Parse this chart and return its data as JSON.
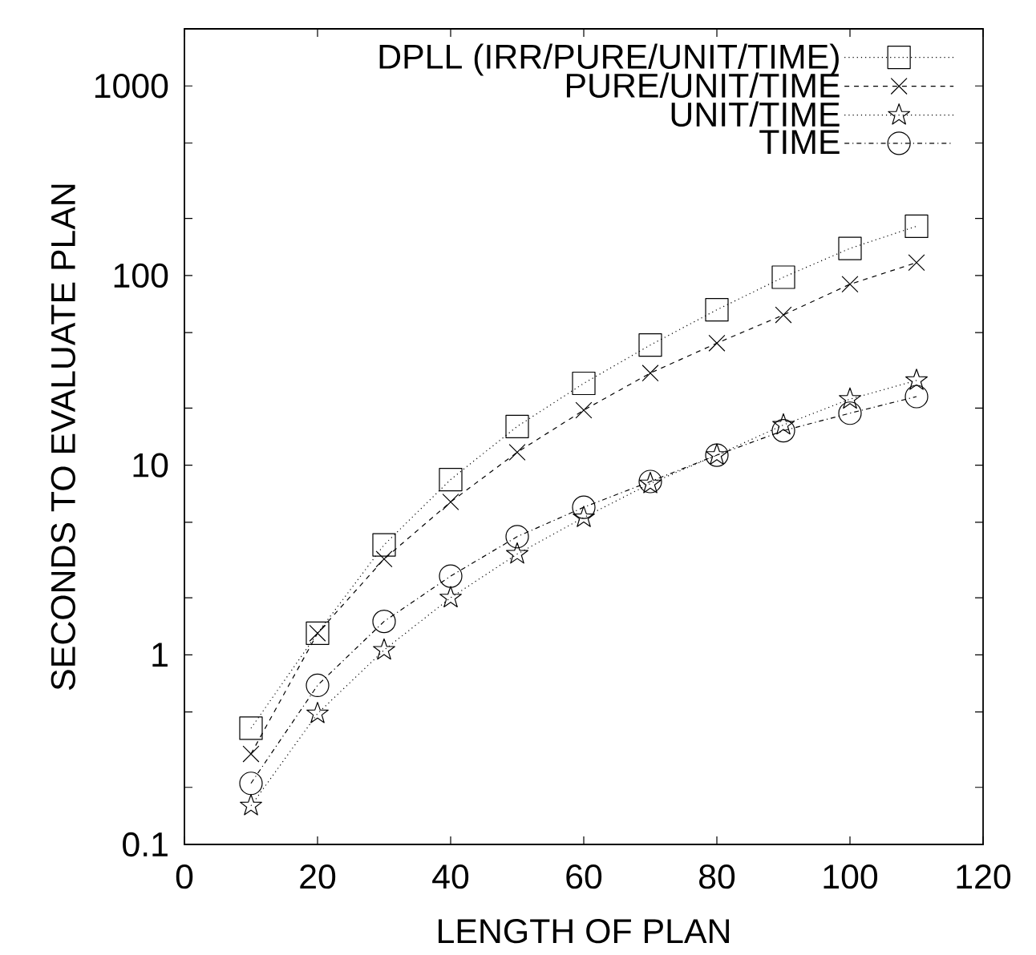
{
  "chart_data": {
    "type": "line",
    "xlabel": "LENGTH OF PLAN",
    "ylabel": "SECONDS TO EVALUATE PLAN",
    "x": [
      10,
      20,
      30,
      40,
      50,
      60,
      70,
      80,
      90,
      100,
      110
    ],
    "series": [
      {
        "name": "DPLL (IRR/PURE/UNIT/TIME)",
        "color": "#000000",
        "marker": "square",
        "line_style": "dotted",
        "values": [
          0.41,
          1.3,
          3.8,
          8.4,
          16,
          27,
          43,
          66,
          98,
          139,
          182
        ]
      },
      {
        "name": "PURE/UNIT/TIME",
        "color": "#000000",
        "marker": "cross",
        "line_style": "dashed",
        "values": [
          0.3,
          1.3,
          3.2,
          6.4,
          11.7,
          19.5,
          30.6,
          44,
          62,
          90,
          117
        ]
      },
      {
        "name": "UNIT/TIME",
        "color": "#000000",
        "marker": "star",
        "line_style": "dotted",
        "values": [
          0.16,
          0.49,
          1.06,
          2.0,
          3.4,
          5.3,
          8.0,
          11.3,
          16.3,
          22.3,
          28
        ]
      },
      {
        "name": "TIME",
        "color": "#000000",
        "marker": "circle",
        "line_style": "dashdotted",
        "values": [
          0.21,
          0.69,
          1.5,
          2.6,
          4.2,
          6.0,
          8.2,
          11.3,
          15.2,
          18.8,
          23
        ]
      }
    ],
    "log": "y",
    "grid": false,
    "legend": "top right",
    "xlim": [
      0,
      120
    ],
    "xticks": [
      0,
      20,
      40,
      60,
      80,
      100,
      120
    ],
    "ylim": [
      0.1,
      2000
    ],
    "yticks": [
      0.1,
      {
        "value": 0.2,
        "label": null
      },
      {
        "value": 0.5,
        "label": null
      },
      1,
      {
        "value": 2,
        "label": null
      },
      {
        "value": 5,
        "label": null
      },
      10,
      {
        "value": 20,
        "label": null
      },
      {
        "value": 50,
        "label": null
      },
      100,
      {
        "value": 200,
        "label": null
      },
      {
        "value": 500,
        "label": null
      },
      1000,
      {
        "value": 2000,
        "label": null
      }
    ]
  }
}
